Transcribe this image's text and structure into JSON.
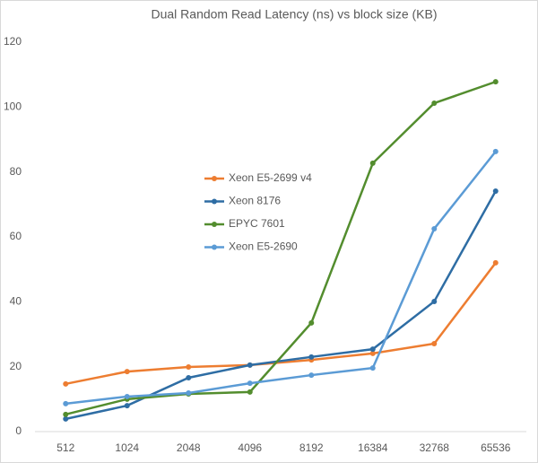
{
  "chart_data": {
    "type": "line",
    "title": "Dual Random Read Latency (ns) vs block size (KB)",
    "categories": [
      "512",
      "1024",
      "2048",
      "4096",
      "8192",
      "16384",
      "32768",
      "65536"
    ],
    "series": [
      {
        "name": "Xeon E5-2699 v4",
        "color": "#ed7d31",
        "values": [
          14.7,
          18.5,
          19.9,
          20.5,
          22.1,
          24.1,
          27.1,
          52
        ]
      },
      {
        "name": "Xeon 8176",
        "color": "#2e6da4",
        "values": [
          3.9,
          8.0,
          16.6,
          20.5,
          23,
          25.4,
          40.1,
          74.1
        ]
      },
      {
        "name": "EPYC 7601",
        "color": "#538d2e",
        "values": [
          5.3,
          10,
          11.6,
          12.2,
          33.5,
          82.7,
          101.2,
          107.8
        ]
      },
      {
        "name": "Xeon E5-2690",
        "color": "#5b9bd5",
        "values": [
          8.6,
          10.8,
          11.9,
          14.9,
          17.4,
          19.6,
          62.5,
          86.3
        ]
      }
    ],
    "ylim": [
      0,
      120
    ],
    "yticks": [
      0,
      20,
      40,
      60,
      80,
      100,
      120
    ],
    "grid": false,
    "legend": "center-left"
  }
}
